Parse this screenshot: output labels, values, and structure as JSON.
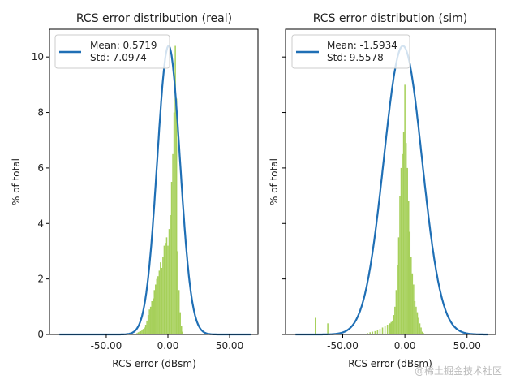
{
  "watermark": "@稀土掘金技术社区",
  "colors": {
    "hist": "#a6d05a",
    "curve": "#1f6fb5",
    "axis": "#000000"
  },
  "chart_data": [
    {
      "type": "bar",
      "title": "RCS error distribution (real)",
      "xlabel": "RCS error (dBsm)",
      "ylabel": "% of total",
      "xlim": [
        -96,
        73
      ],
      "ylim": [
        0,
        11
      ],
      "xticks": [
        -50,
        0,
        50
      ],
      "xtick_labels": [
        "-50.00",
        "0.00",
        "50.00"
      ],
      "yticks": [
        0,
        2,
        4,
        6,
        8,
        10
      ],
      "ytick_labels": [
        "0",
        "2",
        "4",
        "6",
        "8",
        "10"
      ],
      "grid": false,
      "legend": {
        "placement": "top-left",
        "lines": [
          "Mean: 0.5719",
          "Std: 7.0974"
        ]
      },
      "histogram": {
        "bin_width": 1,
        "x": [
          -25,
          -24,
          -23,
          -22,
          -21,
          -20,
          -19,
          -18,
          -17,
          -16,
          -15,
          -14,
          -13,
          -12,
          -11,
          -10,
          -9,
          -8,
          -7,
          -6,
          -5,
          -4,
          -3,
          -2,
          -1,
          0,
          1,
          2,
          3,
          4,
          5,
          6,
          7,
          8,
          9,
          10,
          11,
          12
        ],
        "values": [
          0.05,
          0.08,
          0.1,
          0.12,
          0.15,
          0.2,
          0.25,
          0.35,
          0.5,
          0.7,
          0.9,
          1.0,
          1.2,
          1.3,
          1.6,
          1.8,
          2.0,
          2.1,
          2.3,
          2.6,
          2.4,
          2.8,
          3.2,
          3.3,
          3.5,
          3.2,
          3.8,
          4.3,
          5.5,
          6.5,
          8.0,
          10.4,
          8.5,
          3.0,
          1.6,
          0.8,
          0.3,
          0.1
        ]
      },
      "curve": {
        "type": "gaussian",
        "center": 0.5719,
        "peak": 10.4,
        "sigma": 9.2,
        "x_range": [
          -88,
          67
        ]
      }
    },
    {
      "type": "bar",
      "title": "RCS error distribution (sim)",
      "xlabel": "RCS error (dBsm)",
      "ylabel": "% of total",
      "xlim": [
        -96,
        73
      ],
      "ylim": [
        0,
        11
      ],
      "xticks": [
        -50,
        0,
        50
      ],
      "xtick_labels": [
        "-50.00",
        "0.00",
        "50.00"
      ],
      "yticks": [
        0,
        2,
        4,
        6,
        8,
        10
      ],
      "ytick_labels": [],
      "grid": false,
      "legend": {
        "placement": "top-left",
        "lines": [
          "Mean: -1.5934",
          "Std: 9.5578"
        ]
      },
      "histogram": {
        "bin_width": 1,
        "x": [
          -72,
          -62,
          -30,
          -28,
          -26,
          -24,
          -22,
          -20,
          -18,
          -16,
          -14,
          -12,
          -11,
          -10,
          -9,
          -8,
          -7,
          -6,
          -5,
          -4,
          -3,
          -2,
          -1,
          0,
          1,
          2,
          3,
          4,
          5,
          6,
          7,
          8,
          9,
          10,
          11,
          12,
          13,
          14,
          15
        ],
        "values": [
          0.6,
          0.4,
          0.05,
          0.08,
          0.1,
          0.12,
          0.15,
          0.2,
          0.25,
          0.3,
          0.35,
          0.4,
          0.45,
          0.5,
          0.7,
          1.0,
          1.6,
          2.5,
          3.5,
          5.0,
          6.0,
          6.5,
          7.3,
          9.0,
          6.9,
          6.0,
          4.8,
          3.7,
          2.8,
          2.2,
          1.8,
          1.2,
          1.0,
          0.8,
          0.6,
          0.4,
          0.25,
          0.1,
          0.05
        ]
      },
      "curve": {
        "type": "gaussian",
        "center": -1.5934,
        "peak": 10.4,
        "sigma": 15.4,
        "x_range": [
          -88,
          67
        ]
      }
    }
  ]
}
